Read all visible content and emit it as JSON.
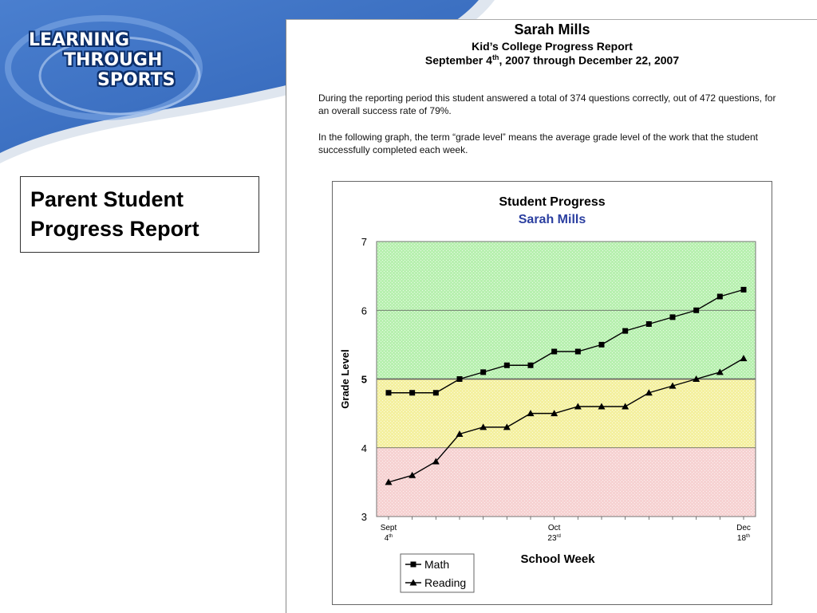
{
  "logo": {
    "lines": [
      "LEARNING",
      "THROUGH",
      "SPORTS"
    ]
  },
  "slide_title": {
    "line1": "Parent Student",
    "line2": "Progress Report"
  },
  "report": {
    "name": "Sarah Mills",
    "subtitle": "Kid’s College Progress Report",
    "dates_pre": "September 4",
    "dates_sup": "th",
    "dates_post": ", 2007 through December 22, 2007",
    "para1": "During the reporting period this student answered a total of 374 questions correctly, out of 472 questions, for an overall success rate of 79%.",
    "para2": "In the following graph, the term “grade level” means the average grade level of the work that the student successfully completed each week."
  },
  "colors": {
    "banner": "#3d6fc0",
    "band_high": "#b8f0b0",
    "band_mid": "#f4f0a0",
    "band_low": "#f6d2d2",
    "line": "#000000"
  },
  "chart_data": {
    "type": "line",
    "title": "Student Progress",
    "subtitle": "Sarah Mills",
    "xlabel": "School Week",
    "ylabel": "Grade Level",
    "ylim": [
      3,
      7
    ],
    "yticks": [
      3,
      4,
      5,
      6,
      7
    ],
    "x": [
      1,
      2,
      3,
      4,
      5,
      6,
      7,
      8,
      9,
      10,
      11,
      12,
      13,
      14,
      15,
      16
    ],
    "xtick_labels": [
      {
        "x": 1,
        "line1": "Sept",
        "line2": "4",
        "sup": "th"
      },
      {
        "x": 8,
        "line1": "Oct",
        "line2": "23",
        "sup": "rd"
      },
      {
        "x": 16,
        "line1": "Dec",
        "line2": "18",
        "sup": "th"
      }
    ],
    "bands": [
      {
        "from": 6,
        "to": 7,
        "color": "#b8f0b0"
      },
      {
        "from": 5,
        "to": 6,
        "color": "#b8f0b0"
      },
      {
        "from": 4,
        "to": 5,
        "color": "#f4f0a0"
      },
      {
        "from": 3,
        "to": 4,
        "color": "#f6d2d2"
      }
    ],
    "series": [
      {
        "name": "Math",
        "marker": "square",
        "values": [
          4.8,
          4.8,
          4.8,
          5.0,
          5.1,
          5.2,
          5.2,
          5.4,
          5.4,
          5.5,
          5.7,
          5.8,
          5.9,
          6.0,
          6.2,
          6.3
        ]
      },
      {
        "name": "Reading",
        "marker": "triangle",
        "values": [
          3.5,
          3.6,
          3.8,
          4.2,
          4.3,
          4.3,
          4.5,
          4.5,
          4.6,
          4.6,
          4.6,
          4.8,
          4.9,
          5.0,
          5.1,
          5.3
        ]
      }
    ],
    "legend": "bottom-left"
  }
}
